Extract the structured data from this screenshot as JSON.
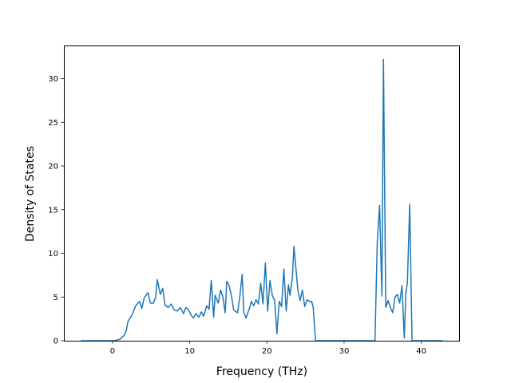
{
  "chart_data": {
    "type": "line",
    "title": "",
    "xlabel": "Frequency (THz)",
    "ylabel": "Density of States",
    "xlim": [
      -6.3,
      44.9
    ],
    "ylim": [
      0,
      33.8
    ],
    "x_ticks": [
      0,
      10,
      20,
      30,
      40
    ],
    "y_ticks": [
      0,
      5,
      10,
      15,
      20,
      25,
      30
    ],
    "grid": false,
    "legend": "none",
    "series": [
      {
        "color": "#1f77b4",
        "points": [
          [
            -4.0,
            0.0
          ],
          [
            0.0,
            0.0
          ],
          [
            0.5,
            0.05
          ],
          [
            1.0,
            0.2
          ],
          [
            1.5,
            0.6
          ],
          [
            1.8,
            1.2
          ],
          [
            2.0,
            2.2
          ],
          [
            2.5,
            2.9
          ],
          [
            3.0,
            4.0
          ],
          [
            3.5,
            4.5
          ],
          [
            3.8,
            3.7
          ],
          [
            4.1,
            4.9
          ],
          [
            4.6,
            5.5
          ],
          [
            4.9,
            4.3
          ],
          [
            5.3,
            4.3
          ],
          [
            5.6,
            5.0
          ],
          [
            5.8,
            7.0
          ],
          [
            6.2,
            5.3
          ],
          [
            6.5,
            6.0
          ],
          [
            6.8,
            4.1
          ],
          [
            7.2,
            3.8
          ],
          [
            7.6,
            4.2
          ],
          [
            8.0,
            3.5
          ],
          [
            8.4,
            3.4
          ],
          [
            8.8,
            3.8
          ],
          [
            9.2,
            3.1
          ],
          [
            9.5,
            3.8
          ],
          [
            9.8,
            3.6
          ],
          [
            10.2,
            2.9
          ],
          [
            10.5,
            2.6
          ],
          [
            10.8,
            3.1
          ],
          [
            11.2,
            2.7
          ],
          [
            11.5,
            3.3
          ],
          [
            11.8,
            2.8
          ],
          [
            12.2,
            4.0
          ],
          [
            12.5,
            3.6
          ],
          [
            12.8,
            6.9
          ],
          [
            13.1,
            2.7
          ],
          [
            13.3,
            5.2
          ],
          [
            13.7,
            4.3
          ],
          [
            14.0,
            5.8
          ],
          [
            14.3,
            5.0
          ],
          [
            14.6,
            3.2
          ],
          [
            14.8,
            6.8
          ],
          [
            15.1,
            6.3
          ],
          [
            15.4,
            5.2
          ],
          [
            15.7,
            3.5
          ],
          [
            16.2,
            3.2
          ],
          [
            16.5,
            5.1
          ],
          [
            16.8,
            7.6
          ],
          [
            17.0,
            3.3
          ],
          [
            17.3,
            2.6
          ],
          [
            17.7,
            3.6
          ],
          [
            18.0,
            4.5
          ],
          [
            18.3,
            4.0
          ],
          [
            18.6,
            4.7
          ],
          [
            18.9,
            4.2
          ],
          [
            19.2,
            6.6
          ],
          [
            19.5,
            4.2
          ],
          [
            19.8,
            8.9
          ],
          [
            20.1,
            3.4
          ],
          [
            20.4,
            6.9
          ],
          [
            20.7,
            5.2
          ],
          [
            21.0,
            4.6
          ],
          [
            21.3,
            0.8
          ],
          [
            21.6,
            4.5
          ],
          [
            21.9,
            3.9
          ],
          [
            22.2,
            8.2
          ],
          [
            22.5,
            3.4
          ],
          [
            22.8,
            6.4
          ],
          [
            23.0,
            5.2
          ],
          [
            23.3,
            7.2
          ],
          [
            23.5,
            10.8
          ],
          [
            23.8,
            7.9
          ],
          [
            24.0,
            5.9
          ],
          [
            24.3,
            4.6
          ],
          [
            24.6,
            5.8
          ],
          [
            24.9,
            3.9
          ],
          [
            25.2,
            4.7
          ],
          [
            25.5,
            4.5
          ],
          [
            25.8,
            4.5
          ],
          [
            26.0,
            3.8
          ],
          [
            26.3,
            0.0
          ],
          [
            34.0,
            0.0
          ],
          [
            34.3,
            11.3
          ],
          [
            34.6,
            15.5
          ],
          [
            34.9,
            5.1
          ],
          [
            35.1,
            32.2
          ],
          [
            35.4,
            3.8
          ],
          [
            35.7,
            4.6
          ],
          [
            36.0,
            3.8
          ],
          [
            36.3,
            3.2
          ],
          [
            36.6,
            5.0
          ],
          [
            36.9,
            5.3
          ],
          [
            37.2,
            4.3
          ],
          [
            37.5,
            6.3
          ],
          [
            37.8,
            0.3
          ],
          [
            38.0,
            5.5
          ],
          [
            38.2,
            6.6
          ],
          [
            38.5,
            15.6
          ],
          [
            38.8,
            0.0
          ],
          [
            42.7,
            0.0
          ]
        ]
      }
    ]
  }
}
